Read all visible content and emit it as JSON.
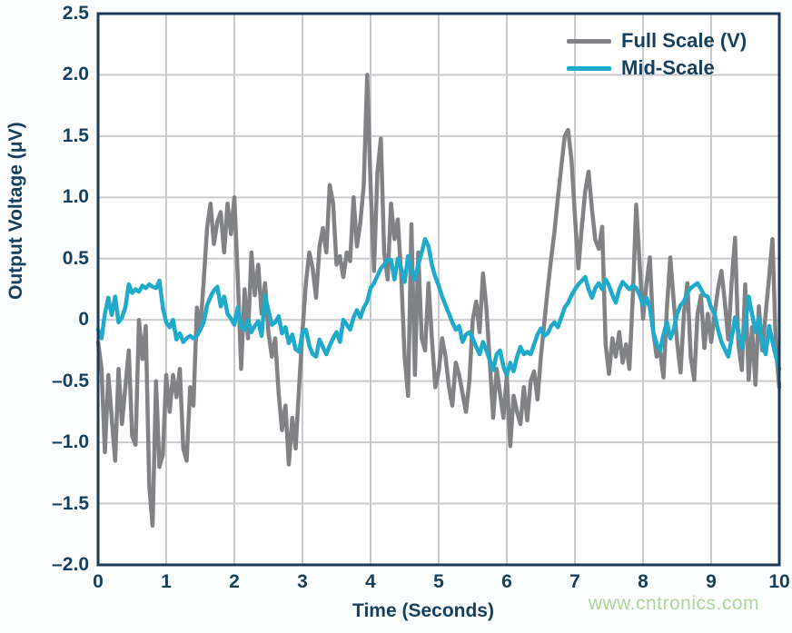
{
  "chart_data": {
    "type": "line",
    "title": "",
    "xlabel": "Time (Seconds)",
    "ylabel": "Output Voltage (μV)",
    "xlim": [
      0,
      10
    ],
    "ylim": [
      -2.0,
      2.5
    ],
    "grid": true,
    "legend_position": "top-right",
    "x_ticks": [
      "0",
      "1",
      "2",
      "3",
      "4",
      "5",
      "6",
      "7",
      "8",
      "9",
      "10"
    ],
    "x_tick_values": [
      0,
      1,
      2,
      3,
      4,
      5,
      6,
      7,
      8,
      9,
      10
    ],
    "y_ticks": [
      "2.5",
      "2.0",
      "1.5",
      "1.0",
      "0.5",
      "0",
      "–0.5",
      "–1.0",
      "–1.5",
      "–2.0"
    ],
    "y_tick_values": [
      2.5,
      2.0,
      1.5,
      1.0,
      0.5,
      0,
      -0.5,
      -1.0,
      -1.5,
      -2.0
    ],
    "x_start": 0,
    "x_step": 0.05,
    "series": [
      {
        "name": "Full Scale (V)",
        "color": "#808285",
        "values": [
          -0.18,
          -0.4,
          -1.08,
          -0.45,
          -0.8,
          -1.15,
          -0.4,
          -0.85,
          -0.55,
          -0.25,
          -0.95,
          -1.02,
          0.0,
          -0.32,
          -0.05,
          -1.35,
          -1.68,
          -0.5,
          -1.2,
          -1.1,
          -0.45,
          -0.75,
          -0.45,
          -0.63,
          -0.4,
          -1.05,
          -1.15,
          -0.55,
          -0.7,
          0.1,
          -0.08,
          0.32,
          0.75,
          0.95,
          0.62,
          0.8,
          0.88,
          0.55,
          0.95,
          0.7,
          1.0,
          0.35,
          -0.4,
          0.25,
          -0.15,
          0.55,
          0.2,
          0.45,
          0.05,
          0.3,
          -0.1,
          -0.3,
          -0.15,
          -0.6,
          -0.9,
          -0.7,
          -1.18,
          -0.8,
          -1.05,
          -0.55,
          -0.1,
          0.3,
          0.55,
          0.42,
          0.18,
          0.6,
          0.75,
          0.55,
          1.1,
          0.95,
          0.45,
          0.52,
          0.35,
          0.55,
          0.48,
          1.0,
          0.6,
          0.8,
          1.1,
          2.0,
          1.1,
          0.4,
          1.2,
          1.48,
          0.55,
          0.33,
          0.95,
          0.66,
          0.82,
          0.35,
          -0.3,
          -0.62,
          0.78,
          -0.45,
          0.55,
          -0.15,
          -0.25,
          0.3,
          -0.15,
          -0.55,
          -0.42,
          -0.15,
          -0.3,
          -0.55,
          -0.7,
          -0.35,
          -0.45,
          -0.6,
          -0.75,
          -0.5,
          0.0,
          0.15,
          -0.1,
          0.38,
          0.1,
          -0.35,
          -0.8,
          -0.4,
          -0.6,
          -0.8,
          -0.45,
          -1.03,
          -0.62,
          -0.75,
          -0.85,
          -0.55,
          -0.82,
          -0.5,
          -0.42,
          -0.65,
          -0.3,
          -0.02,
          0.25,
          0.5,
          0.72,
          1.0,
          1.25,
          1.5,
          1.55,
          1.3,
          0.85,
          0.42,
          0.75,
          1.05,
          1.21,
          0.9,
          0.65,
          0.58,
          0.76,
          -0.2,
          -0.44,
          -0.15,
          -0.3,
          -0.1,
          -0.35,
          -0.2,
          -0.4,
          0.2,
          0.94,
          0.45,
          0.01,
          0.3,
          0.51,
          -0.1,
          -0.3,
          -0.26,
          -0.47,
          0.1,
          0.51,
          0.15,
          -0.18,
          -0.43,
          0.05,
          0.3,
          -0.3,
          -0.49,
          0.05,
          0.2,
          -0.23,
          0.05,
          -0.18,
          0.05,
          0.25,
          0.4,
          0.15,
          -0.16,
          0.3,
          0.67,
          -0.2,
          -0.41,
          0.29,
          -0.49,
          -0.06,
          -0.53,
          0.11,
          -0.25,
          0.05,
          0.35,
          0.66,
          -0.23,
          -0.55
        ]
      },
      {
        "name": "Mid-Scale",
        "color": "#1fa9cb",
        "values": [
          -0.08,
          -0.15,
          0.05,
          0.18,
          0.04,
          0.19,
          -0.02,
          0.02,
          0.1,
          0.29,
          0.22,
          0.25,
          0.23,
          0.28,
          0.26,
          0.29,
          0.27,
          0.26,
          0.32,
          0.1,
          -0.02,
          -0.06,
          0.0,
          -0.16,
          -0.11,
          -0.18,
          -0.15,
          -0.13,
          -0.15,
          -0.13,
          -0.08,
          -0.02,
          0.12,
          0.19,
          0.24,
          0.27,
          0.11,
          0.19,
          0.05,
          0.01,
          -0.04,
          0.1,
          -0.06,
          -0.08,
          0.0,
          -0.1,
          -0.05,
          -0.01,
          -0.13,
          0.2,
          0.08,
          -0.04,
          -0.02,
          0.03,
          -0.11,
          -0.06,
          -0.19,
          -0.12,
          -0.24,
          -0.26,
          -0.1,
          -0.08,
          -0.21,
          -0.28,
          -0.3,
          -0.16,
          -0.22,
          -0.28,
          -0.21,
          -0.15,
          -0.1,
          -0.18,
          0.0,
          -0.04,
          -0.08,
          0.02,
          0.08,
          0.02,
          0.1,
          0.15,
          0.26,
          0.3,
          0.36,
          0.42,
          0.45,
          0.49,
          0.49,
          0.33,
          0.5,
          0.42,
          0.31,
          0.52,
          0.4,
          0.33,
          0.45,
          0.55,
          0.66,
          0.6,
          0.45,
          0.35,
          0.28,
          0.19,
          0.12,
          0.05,
          -0.02,
          -0.08,
          -0.05,
          -0.18,
          -0.12,
          -0.1,
          -0.15,
          -0.22,
          -0.28,
          -0.18,
          -0.25,
          -0.33,
          -0.41,
          -0.28,
          -0.25,
          -0.38,
          -0.45,
          -0.35,
          -0.42,
          -0.3,
          -0.22,
          -0.28,
          -0.26,
          -0.28,
          -0.2,
          -0.12,
          -0.07,
          -0.13,
          -0.11,
          -0.05,
          -0.02,
          -0.06,
          0.02,
          0.1,
          0.14,
          0.2,
          0.25,
          0.29,
          0.32,
          0.35,
          0.25,
          0.18,
          0.26,
          0.3,
          0.25,
          0.33,
          0.28,
          0.2,
          0.14,
          0.25,
          0.31,
          0.28,
          0.25,
          0.28,
          0.26,
          0.2,
          0.12,
          0.18,
          0.1,
          -0.1,
          -0.2,
          -0.25,
          -0.12,
          -0.02,
          -0.15,
          -0.08,
          0.05,
          0.12,
          0.15,
          0.22,
          0.26,
          0.28,
          0.3,
          0.25,
          0.2,
          0.19,
          0.1,
          0.05,
          -0.08,
          -0.18,
          -0.24,
          -0.3,
          -0.15,
          0.02,
          -0.1,
          -0.23,
          -0.05,
          0.19,
          0.05,
          -0.1,
          0.02,
          -0.2,
          -0.28,
          -0.05,
          -0.18,
          -0.3,
          -0.4
        ]
      }
    ]
  },
  "styles": {
    "axis_text_color": "#17405f",
    "grid_color": "#c9cacc",
    "border_color": "#1c3b58",
    "plot_background": "#ffffff",
    "page_background": "#fcfdfe"
  },
  "watermark": {
    "text": "www.cntronics.com",
    "color": "#aed69c"
  }
}
